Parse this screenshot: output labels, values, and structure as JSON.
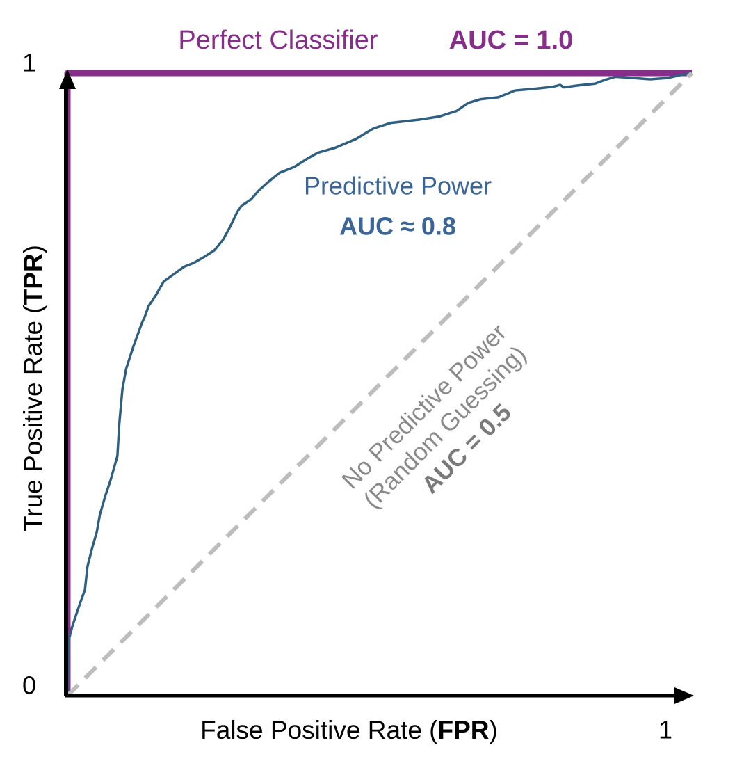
{
  "chart_data": {
    "type": "line",
    "xlabel": [
      "False Positive Rate (",
      "FPR",
      ")"
    ],
    "ylabel": [
      "True Positive Rate (",
      "TPR",
      ")"
    ],
    "xlim": [
      0,
      1
    ],
    "ylim": [
      0,
      1
    ],
    "xticks": [
      1
    ],
    "yticks": [
      0,
      1
    ],
    "series": [
      {
        "name": "Perfect Classifier",
        "auc_label": "AUC = 1.0",
        "color": "#862e8a",
        "style": "solid",
        "x": [
          0,
          0,
          1
        ],
        "values": [
          0,
          1,
          1
        ]
      },
      {
        "name": "Predictive Power",
        "auc_label": "AUC ≈ 0.8",
        "color": "#2f5f80",
        "style": "solid",
        "x": [
          0,
          0.002,
          0.008,
          0.019,
          0.028,
          0.032,
          0.039,
          0.047,
          0.052,
          0.061,
          0.069,
          0.08,
          0.083,
          0.088,
          0.094,
          0.105,
          0.119,
          0.124,
          0.13,
          0.141,
          0.154,
          0.169,
          0.187,
          0.202,
          0.218,
          0.235,
          0.249,
          0.261,
          0.272,
          0.279,
          0.294,
          0.307,
          0.324,
          0.34,
          0.363,
          0.385,
          0.401,
          0.429,
          0.462,
          0.49,
          0.518,
          0.562,
          0.595,
          0.623,
          0.642,
          0.662,
          0.69,
          0.717,
          0.751,
          0.778,
          0.789,
          0.795,
          0.817,
          0.845,
          0.861,
          0.878,
          0.906,
          0.933,
          0.961,
          0.983,
          1
        ],
        "values": [
          0,
          0.089,
          0.112,
          0.145,
          0.17,
          0.207,
          0.235,
          0.263,
          0.291,
          0.322,
          0.346,
          0.385,
          0.436,
          0.492,
          0.525,
          0.559,
          0.598,
          0.609,
          0.626,
          0.642,
          0.665,
          0.676,
          0.689,
          0.695,
          0.704,
          0.715,
          0.732,
          0.754,
          0.777,
          0.787,
          0.797,
          0.812,
          0.827,
          0.84,
          0.849,
          0.863,
          0.872,
          0.88,
          0.894,
          0.911,
          0.92,
          0.925,
          0.93,
          0.939,
          0.952,
          0.958,
          0.961,
          0.972,
          0.975,
          0.978,
          0.981,
          0.977,
          0.98,
          0.983,
          0.989,
          0.994,
          0.992,
          0.99,
          0.992,
          0.997,
          1
        ]
      },
      {
        "name": "No Predictive Power",
        "subname": "(Random Guessing)",
        "auc_label": "AUC = 0.5",
        "color": "#bdbdbd",
        "style": "dashed",
        "x": [
          0,
          1
        ],
        "values": [
          0,
          1
        ]
      }
    ]
  }
}
